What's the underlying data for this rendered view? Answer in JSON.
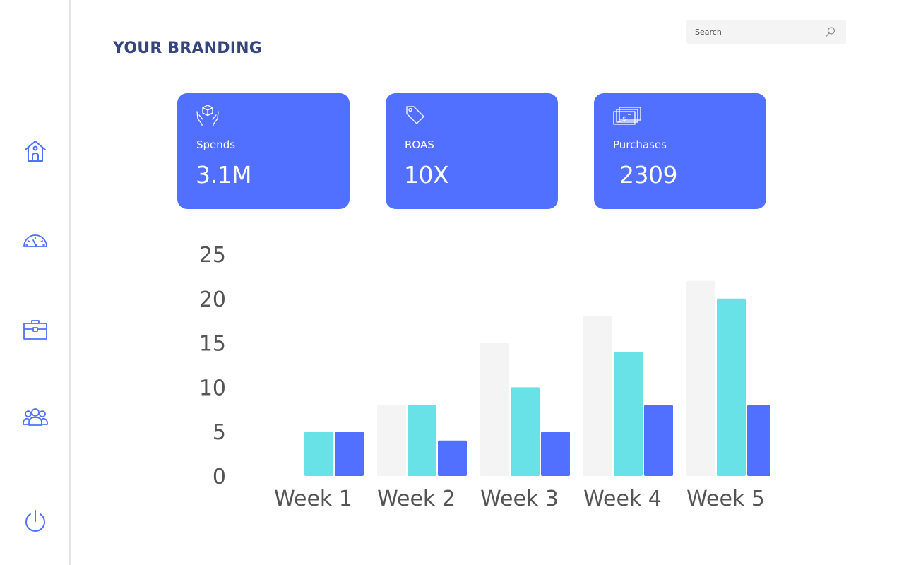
{
  "page": {
    "title": "YOUR BRANDING"
  },
  "search": {
    "placeholder": "Search",
    "icon": "search-icon"
  },
  "sidebar": {
    "items": [
      {
        "name": "home",
        "icon": "home-icon"
      },
      {
        "name": "dashboard",
        "icon": "gauge-icon"
      },
      {
        "name": "portfolio",
        "icon": "briefcase-icon"
      },
      {
        "name": "users",
        "icon": "users-icon"
      },
      {
        "name": "logout",
        "icon": "power-icon"
      }
    ]
  },
  "cards": [
    {
      "label": "Spends",
      "value": "3.1M",
      "icon": "box-in-hands-icon"
    },
    {
      "label": "ROAS",
      "value": "10X",
      "icon": "price-tag-icon"
    },
    {
      "label": "Purchases",
      "value": " 2309",
      "icon": "cash-stack-icon"
    }
  ],
  "colors": {
    "accent": "#5170ff",
    "title": "#35467f",
    "series_light": "#f4f4f4",
    "series_teal": "#68e2e7",
    "series_blue": "#5170ff"
  },
  "chart_data": {
    "type": "bar",
    "categories": [
      "Week 1",
      "Week 2",
      "Week 3",
      "Week 4",
      "Week 5"
    ],
    "series": [
      {
        "values": [
          0,
          8,
          15,
          18,
          22
        ],
        "color": "#f4f4f4"
      },
      {
        "values": [
          5,
          8,
          10,
          14,
          20
        ],
        "color": "#68e2e7"
      },
      {
        "values": [
          5,
          4,
          5,
          8,
          8
        ],
        "color": "#5170ff"
      }
    ],
    "ylim": [
      0,
      25
    ],
    "yticks": [
      0,
      5,
      10,
      15,
      20,
      25
    ],
    "grid": false,
    "legend": "none"
  }
}
